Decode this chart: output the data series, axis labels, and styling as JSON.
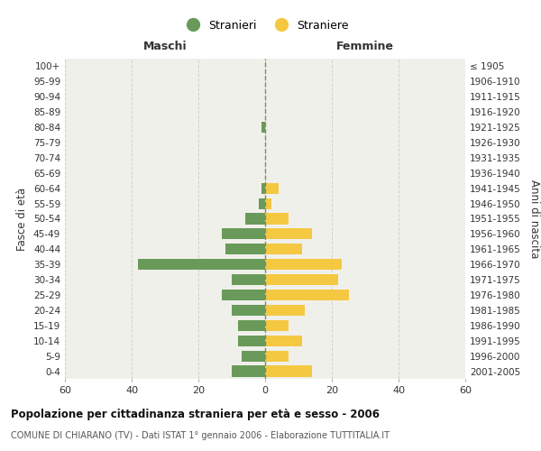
{
  "age_groups": [
    "0-4",
    "5-9",
    "10-14",
    "15-19",
    "20-24",
    "25-29",
    "30-34",
    "35-39",
    "40-44",
    "45-49",
    "50-54",
    "55-59",
    "60-64",
    "65-69",
    "70-74",
    "75-79",
    "80-84",
    "85-89",
    "90-94",
    "95-99",
    "100+"
  ],
  "birth_years": [
    "2001-2005",
    "1996-2000",
    "1991-1995",
    "1986-1990",
    "1981-1985",
    "1976-1980",
    "1971-1975",
    "1966-1970",
    "1961-1965",
    "1956-1960",
    "1951-1955",
    "1946-1950",
    "1941-1945",
    "1936-1940",
    "1931-1935",
    "1926-1930",
    "1921-1925",
    "1916-1920",
    "1911-1915",
    "1906-1910",
    "≤ 1905"
  ],
  "maschi": [
    10,
    7,
    8,
    8,
    10,
    13,
    10,
    38,
    12,
    13,
    6,
    2,
    1,
    0,
    0,
    0,
    1,
    0,
    0,
    0,
    0
  ],
  "femmine": [
    14,
    7,
    11,
    7,
    12,
    25,
    22,
    23,
    11,
    14,
    7,
    2,
    4,
    0,
    0,
    0,
    0,
    0,
    0,
    0,
    0
  ],
  "maschi_color": "#6a9a5a",
  "femmine_color": "#f5c842",
  "background_color": "#f0f0eb",
  "grid_color": "#d0d0d0",
  "xlim": 60,
  "title": "Popolazione per cittadinanza straniera per età e sesso - 2006",
  "subtitle": "COMUNE DI CHIARANO (TV) - Dati ISTAT 1° gennaio 2006 - Elaborazione TUTTITALIA.IT",
  "xlabel_left": "Maschi",
  "xlabel_right": "Femmine",
  "ylabel_left": "Fasce di età",
  "ylabel_right": "Anni di nascita",
  "legend_stranieri": "Stranieri",
  "legend_straniere": "Straniere"
}
